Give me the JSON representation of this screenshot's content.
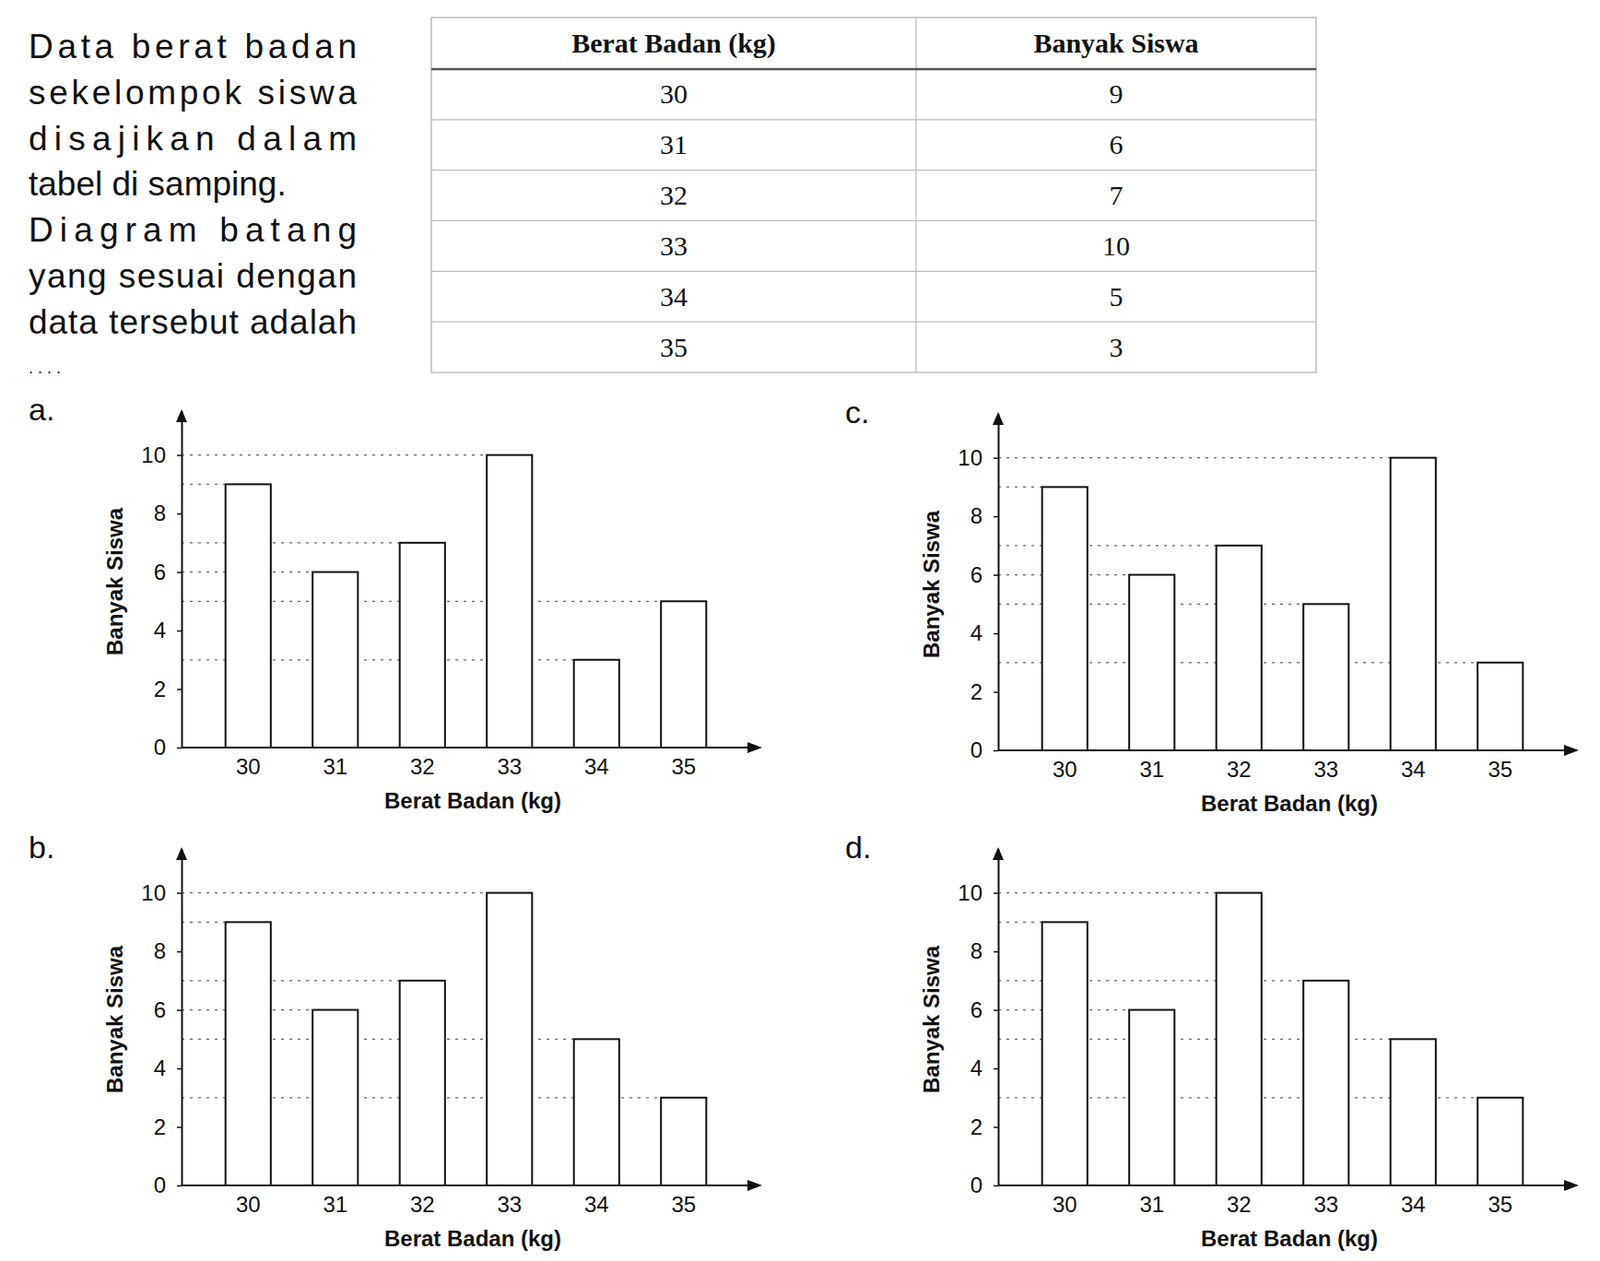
{
  "question": {
    "lines": [
      "Data berat badan",
      "sekelompok siswa",
      "disajikan dalam",
      "tabel di samping.",
      "Diagram batang",
      "yang sesuai dengan",
      "data tersebut adalah",
      ". . . ."
    ]
  },
  "table": {
    "header": [
      "Berat Badan (kg)",
      "Banyak Siswa"
    ],
    "rows": [
      [
        30,
        9
      ],
      [
        31,
        6
      ],
      [
        32,
        7
      ],
      [
        33,
        10
      ],
      [
        34,
        5
      ],
      [
        35,
        3
      ]
    ]
  },
  "chart_data": [
    {
      "type": "bar",
      "title": "a.",
      "x_label": "Berat Badan (kg)",
      "y_label": "Banyak Siswa",
      "categories": [
        "30",
        "31",
        "32",
        "33",
        "34",
        "35"
      ],
      "values": [
        9,
        6,
        7,
        10,
        3,
        5
      ],
      "ylim": [
        0,
        11.5
      ],
      "yticks": [
        0,
        2,
        4,
        6,
        8,
        10
      ]
    },
    {
      "type": "bar",
      "title": "b.",
      "x_label": "Berat Badan (kg)",
      "y_label": "Banyak Siswa",
      "categories": [
        "30",
        "31",
        "32",
        "33",
        "34",
        "35"
      ],
      "values": [
        9,
        6,
        7,
        10,
        5,
        3
      ],
      "ylim": [
        0,
        11.5
      ],
      "yticks": [
        0,
        2,
        4,
        6,
        8,
        10
      ]
    },
    {
      "type": "bar",
      "title": "c.",
      "x_label": "Berat Badan (kg)",
      "y_label": "Banyak Siswa",
      "categories": [
        "30",
        "31",
        "32",
        "33",
        "34",
        "35"
      ],
      "values": [
        9,
        6,
        7,
        5,
        10,
        3
      ],
      "ylim": [
        0,
        11.5
      ],
      "yticks": [
        0,
        2,
        4,
        6,
        8,
        10
      ]
    },
    {
      "type": "bar",
      "title": "d.",
      "x_label": "Berat Badan (kg)",
      "y_label": "Banyak Siswa",
      "categories": [
        "30",
        "31",
        "32",
        "33",
        "34",
        "35"
      ],
      "values": [
        9,
        6,
        10,
        7,
        5,
        3
      ],
      "ylim": [
        0,
        11.5
      ],
      "yticks": [
        0,
        2,
        4,
        6,
        8,
        10
      ]
    }
  ]
}
